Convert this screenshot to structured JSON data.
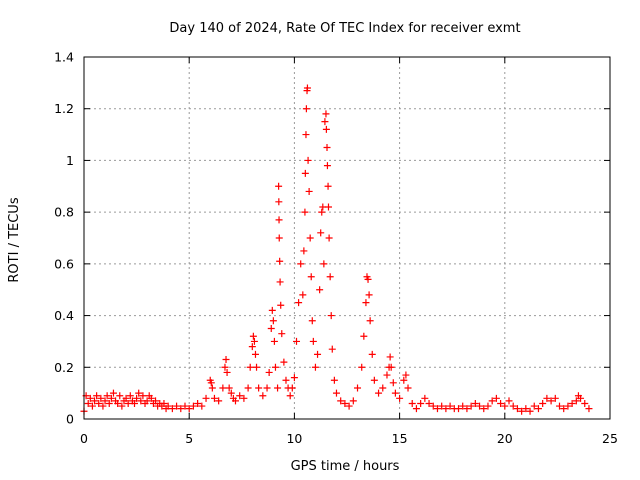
{
  "chart_data": {
    "type": "scatter",
    "title": "Day 140 of 2024, Rate Of TEC Index for receiver exmt",
    "xlabel": "GPS time / hours",
    "ylabel": "ROTI / TECUs",
    "xlim": [
      0,
      25
    ],
    "ylim": [
      0,
      1.4
    ],
    "x_ticks": [
      "0",
      "5",
      "10",
      "15",
      "20",
      "25"
    ],
    "y_ticks": [
      "0",
      "0.2",
      "0.4",
      "0.6",
      "0.8",
      "1",
      "1.2",
      "1.4"
    ],
    "grid": true,
    "marker": "+",
    "color": "#ff0000",
    "series": [
      {
        "points": [
          [
            0.0,
            0.03
          ],
          [
            0.1,
            0.09
          ],
          [
            0.2,
            0.06
          ],
          [
            0.3,
            0.08
          ],
          [
            0.4,
            0.05
          ],
          [
            0.5,
            0.07
          ],
          [
            0.6,
            0.09
          ],
          [
            0.7,
            0.06
          ],
          [
            0.8,
            0.08
          ],
          [
            0.9,
            0.05
          ],
          [
            1.0,
            0.07
          ],
          [
            1.1,
            0.09
          ],
          [
            1.2,
            0.06
          ],
          [
            1.3,
            0.08
          ],
          [
            1.4,
            0.1
          ],
          [
            1.5,
            0.07
          ],
          [
            1.6,
            0.06
          ],
          [
            1.7,
            0.09
          ],
          [
            1.8,
            0.05
          ],
          [
            1.9,
            0.07
          ],
          [
            2.0,
            0.08
          ],
          [
            2.1,
            0.06
          ],
          [
            2.2,
            0.09
          ],
          [
            2.3,
            0.07
          ],
          [
            2.4,
            0.06
          ],
          [
            2.5,
            0.08
          ],
          [
            2.6,
            0.1
          ],
          [
            2.7,
            0.07
          ],
          [
            2.8,
            0.09
          ],
          [
            2.9,
            0.06
          ],
          [
            3.0,
            0.07
          ],
          [
            3.1,
            0.09
          ],
          [
            3.2,
            0.08
          ],
          [
            3.3,
            0.06
          ],
          [
            3.4,
            0.07
          ],
          [
            3.5,
            0.05
          ],
          [
            3.6,
            0.06
          ],
          [
            3.7,
            0.05
          ],
          [
            3.8,
            0.06
          ],
          [
            3.9,
            0.04
          ],
          [
            4.0,
            0.05
          ],
          [
            4.2,
            0.04
          ],
          [
            4.4,
            0.05
          ],
          [
            4.6,
            0.04
          ],
          [
            4.8,
            0.05
          ],
          [
            5.0,
            0.04
          ],
          [
            5.2,
            0.05
          ],
          [
            5.4,
            0.06
          ],
          [
            5.6,
            0.05
          ],
          [
            5.8,
            0.08
          ],
          [
            6.0,
            0.15
          ],
          [
            6.05,
            0.14
          ],
          [
            6.1,
            0.12
          ],
          [
            6.2,
            0.08
          ],
          [
            6.4,
            0.07
          ],
          [
            6.6,
            0.12
          ],
          [
            6.7,
            0.2
          ],
          [
            6.75,
            0.23
          ],
          [
            6.8,
            0.18
          ],
          [
            6.9,
            0.12
          ],
          [
            7.0,
            0.1
          ],
          [
            7.1,
            0.08
          ],
          [
            7.2,
            0.07
          ],
          [
            7.4,
            0.09
          ],
          [
            7.6,
            0.08
          ],
          [
            7.8,
            0.12
          ],
          [
            7.9,
            0.2
          ],
          [
            8.0,
            0.28
          ],
          [
            8.05,
            0.32
          ],
          [
            8.1,
            0.3
          ],
          [
            8.15,
            0.25
          ],
          [
            8.2,
            0.2
          ],
          [
            8.3,
            0.12
          ],
          [
            8.5,
            0.09
          ],
          [
            8.7,
            0.12
          ],
          [
            8.8,
            0.18
          ],
          [
            8.9,
            0.35
          ],
          [
            8.95,
            0.42
          ],
          [
            9.0,
            0.38
          ],
          [
            9.05,
            0.3
          ],
          [
            9.1,
            0.2
          ],
          [
            9.2,
            0.12
          ],
          [
            9.25,
            0.9
          ],
          [
            9.26,
            0.84
          ],
          [
            9.27,
            0.77
          ],
          [
            9.28,
            0.7
          ],
          [
            9.3,
            0.61
          ],
          [
            9.32,
            0.53
          ],
          [
            9.35,
            0.44
          ],
          [
            9.4,
            0.33
          ],
          [
            9.5,
            0.22
          ],
          [
            9.6,
            0.15
          ],
          [
            9.7,
            0.12
          ],
          [
            9.8,
            0.09
          ],
          [
            9.9,
            0.12
          ],
          [
            10.0,
            0.16
          ],
          [
            10.1,
            0.3
          ],
          [
            10.2,
            0.45
          ],
          [
            10.3,
            0.6
          ],
          [
            10.4,
            0.48
          ],
          [
            10.45,
            0.65
          ],
          [
            10.5,
            0.8
          ],
          [
            10.52,
            0.95
          ],
          [
            10.55,
            1.1
          ],
          [
            10.57,
            1.2
          ],
          [
            10.6,
            1.27
          ],
          [
            10.62,
            1.28
          ],
          [
            10.65,
            1.0
          ],
          [
            10.7,
            0.88
          ],
          [
            10.75,
            0.7
          ],
          [
            10.8,
            0.55
          ],
          [
            10.85,
            0.38
          ],
          [
            10.9,
            0.3
          ],
          [
            11.0,
            0.2
          ],
          [
            11.1,
            0.25
          ],
          [
            11.2,
            0.5
          ],
          [
            11.25,
            0.72
          ],
          [
            11.3,
            0.8
          ],
          [
            11.35,
            0.82
          ],
          [
            11.4,
            0.6
          ],
          [
            11.45,
            1.15
          ],
          [
            11.5,
            1.18
          ],
          [
            11.52,
            1.12
          ],
          [
            11.55,
            1.05
          ],
          [
            11.57,
            0.98
          ],
          [
            11.6,
            0.9
          ],
          [
            11.62,
            0.82
          ],
          [
            11.65,
            0.7
          ],
          [
            11.7,
            0.55
          ],
          [
            11.75,
            0.4
          ],
          [
            11.8,
            0.27
          ],
          [
            11.9,
            0.15
          ],
          [
            12.0,
            0.1
          ],
          [
            12.2,
            0.07
          ],
          [
            12.4,
            0.06
          ],
          [
            12.6,
            0.05
          ],
          [
            12.8,
            0.07
          ],
          [
            13.0,
            0.12
          ],
          [
            13.2,
            0.2
          ],
          [
            13.3,
            0.32
          ],
          [
            13.4,
            0.45
          ],
          [
            13.45,
            0.55
          ],
          [
            13.5,
            0.54
          ],
          [
            13.55,
            0.48
          ],
          [
            13.6,
            0.38
          ],
          [
            13.7,
            0.25
          ],
          [
            13.8,
            0.15
          ],
          [
            14.0,
            0.1
          ],
          [
            14.2,
            0.12
          ],
          [
            14.4,
            0.17
          ],
          [
            14.5,
            0.2
          ],
          [
            14.55,
            0.24
          ],
          [
            14.6,
            0.2
          ],
          [
            14.7,
            0.14
          ],
          [
            14.8,
            0.1
          ],
          [
            15.0,
            0.08
          ],
          [
            15.2,
            0.15
          ],
          [
            15.3,
            0.17
          ],
          [
            15.4,
            0.12
          ],
          [
            15.6,
            0.06
          ],
          [
            15.8,
            0.04
          ],
          [
            16.0,
            0.06
          ],
          [
            16.2,
            0.08
          ],
          [
            16.4,
            0.06
          ],
          [
            16.6,
            0.05
          ],
          [
            16.8,
            0.04
          ],
          [
            17.0,
            0.05
          ],
          [
            17.2,
            0.04
          ],
          [
            17.4,
            0.05
          ],
          [
            17.6,
            0.04
          ],
          [
            17.8,
            0.04
          ],
          [
            18.0,
            0.05
          ],
          [
            18.2,
            0.04
          ],
          [
            18.4,
            0.05
          ],
          [
            18.6,
            0.06
          ],
          [
            18.8,
            0.05
          ],
          [
            19.0,
            0.04
          ],
          [
            19.2,
            0.05
          ],
          [
            19.4,
            0.07
          ],
          [
            19.6,
            0.08
          ],
          [
            19.8,
            0.06
          ],
          [
            20.0,
            0.05
          ],
          [
            20.2,
            0.07
          ],
          [
            20.4,
            0.05
          ],
          [
            20.6,
            0.04
          ],
          [
            20.8,
            0.03
          ],
          [
            21.0,
            0.04
          ],
          [
            21.2,
            0.03
          ],
          [
            21.4,
            0.05
          ],
          [
            21.6,
            0.04
          ],
          [
            21.8,
            0.06
          ],
          [
            22.0,
            0.08
          ],
          [
            22.2,
            0.07
          ],
          [
            22.4,
            0.08
          ],
          [
            22.6,
            0.05
          ],
          [
            22.8,
            0.04
          ],
          [
            23.0,
            0.05
          ],
          [
            23.2,
            0.06
          ],
          [
            23.4,
            0.07
          ],
          [
            23.5,
            0.09
          ],
          [
            23.6,
            0.08
          ],
          [
            23.8,
            0.06
          ],
          [
            24.0,
            0.04
          ]
        ]
      }
    ]
  }
}
